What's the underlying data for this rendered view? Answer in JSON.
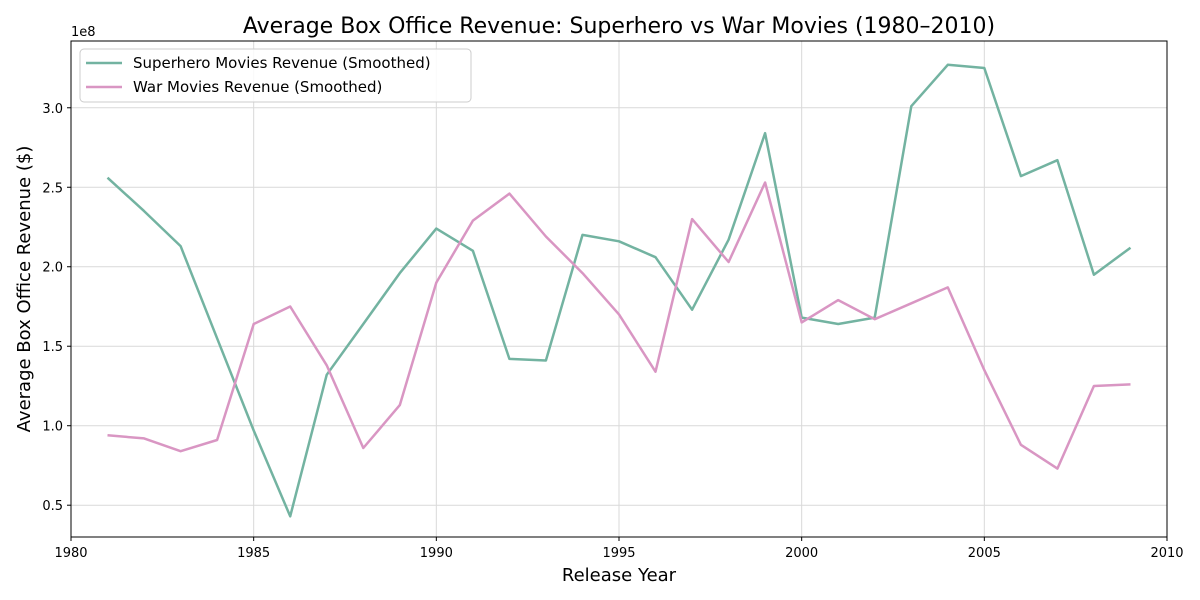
{
  "chart_data": {
    "type": "line",
    "title": "Average Box Office Revenue: Superhero vs War Movies (1980–2010)",
    "xlabel": "Release Year",
    "ylabel": "Average Box Office Revenue ($)",
    "y_multiplier_label": "1e8",
    "xlim": [
      1980,
      2010
    ],
    "ylim": [
      0.3,
      3.42
    ],
    "y_scale_note": "values in units of 1e8 dollars",
    "xticks": [
      1980,
      1985,
      1990,
      1995,
      2000,
      2005,
      2010
    ],
    "yticks": [
      0.5,
      1.0,
      1.5,
      2.0,
      2.5,
      3.0
    ],
    "ytick_labels": [
      "0.5",
      "1.0",
      "1.5",
      "2.0",
      "2.5",
      "3.0"
    ],
    "grid": true,
    "legend_position": "top-left",
    "series": [
      {
        "name": "Superhero Movies Revenue (Smoothed)",
        "color": "#73b3a1",
        "x": [
          1981,
          1982,
          1983,
          1984,
          1985,
          1986,
          1987,
          1988,
          1989,
          1990,
          1991,
          1992,
          1993,
          1994,
          1995,
          1996,
          1997,
          1998,
          1999,
          2000,
          2001,
          2002,
          2003,
          2004,
          2005,
          2006,
          2007,
          2008,
          2009
        ],
        "y": [
          2.56,
          2.35,
          2.13,
          1.55,
          0.97,
          0.43,
          1.32,
          1.64,
          1.96,
          2.24,
          2.1,
          1.42,
          1.41,
          2.2,
          2.16,
          2.06,
          1.73,
          2.17,
          2.84,
          1.68,
          1.64,
          1.68,
          3.01,
          3.27,
          3.25,
          2.57,
          2.67,
          1.95,
          2.12
        ]
      },
      {
        "name": "War Movies Revenue (Smoothed)",
        "color": "#d996c3",
        "x": [
          1981,
          1982,
          1983,
          1984,
          1985,
          1986,
          1987,
          1988,
          1989,
          1990,
          1991,
          1992,
          1993,
          1994,
          1995,
          1996,
          1997,
          1998,
          1999,
          2000,
          2001,
          2002,
          2003,
          2004,
          2005,
          2006,
          2007,
          2008,
          2009
        ],
        "y": [
          0.94,
          0.92,
          0.84,
          0.91,
          1.64,
          1.75,
          1.38,
          0.86,
          1.13,
          1.9,
          2.29,
          2.46,
          2.19,
          1.96,
          1.7,
          1.34,
          2.3,
          2.03,
          2.53,
          1.65,
          1.79,
          1.67,
          1.77,
          1.87,
          1.35,
          0.88,
          0.73,
          1.25,
          1.26
        ]
      }
    ]
  }
}
